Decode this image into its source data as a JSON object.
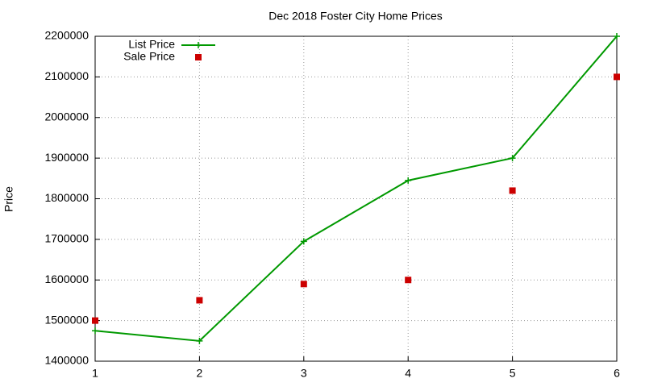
{
  "chart_data": {
    "type": "line",
    "title": "Dec 2018 Foster City Home Prices",
    "y_label": "Price",
    "x": [
      1,
      2,
      3,
      4,
      5,
      6
    ],
    "series": [
      {
        "name": "List Price",
        "color": "#009900",
        "style": "linespoints",
        "values": [
          1475000,
          1450000,
          1695000,
          1845000,
          1900000,
          2200000
        ]
      },
      {
        "name": "Sale Price",
        "color": "#cc0000",
        "style": "points",
        "values": [
          1500000,
          1550000,
          1590000,
          1600000,
          1820000,
          2100000
        ]
      }
    ],
    "xlim": [
      1,
      6
    ],
    "xticks": [
      1,
      2,
      3,
      4,
      5,
      6
    ],
    "ylim": [
      1400000,
      2200000
    ],
    "yticks": [
      1400000,
      1500000,
      1600000,
      1700000,
      1800000,
      1900000,
      2000000,
      2100000,
      2200000
    ],
    "grid": true,
    "legend": "top-left"
  }
}
